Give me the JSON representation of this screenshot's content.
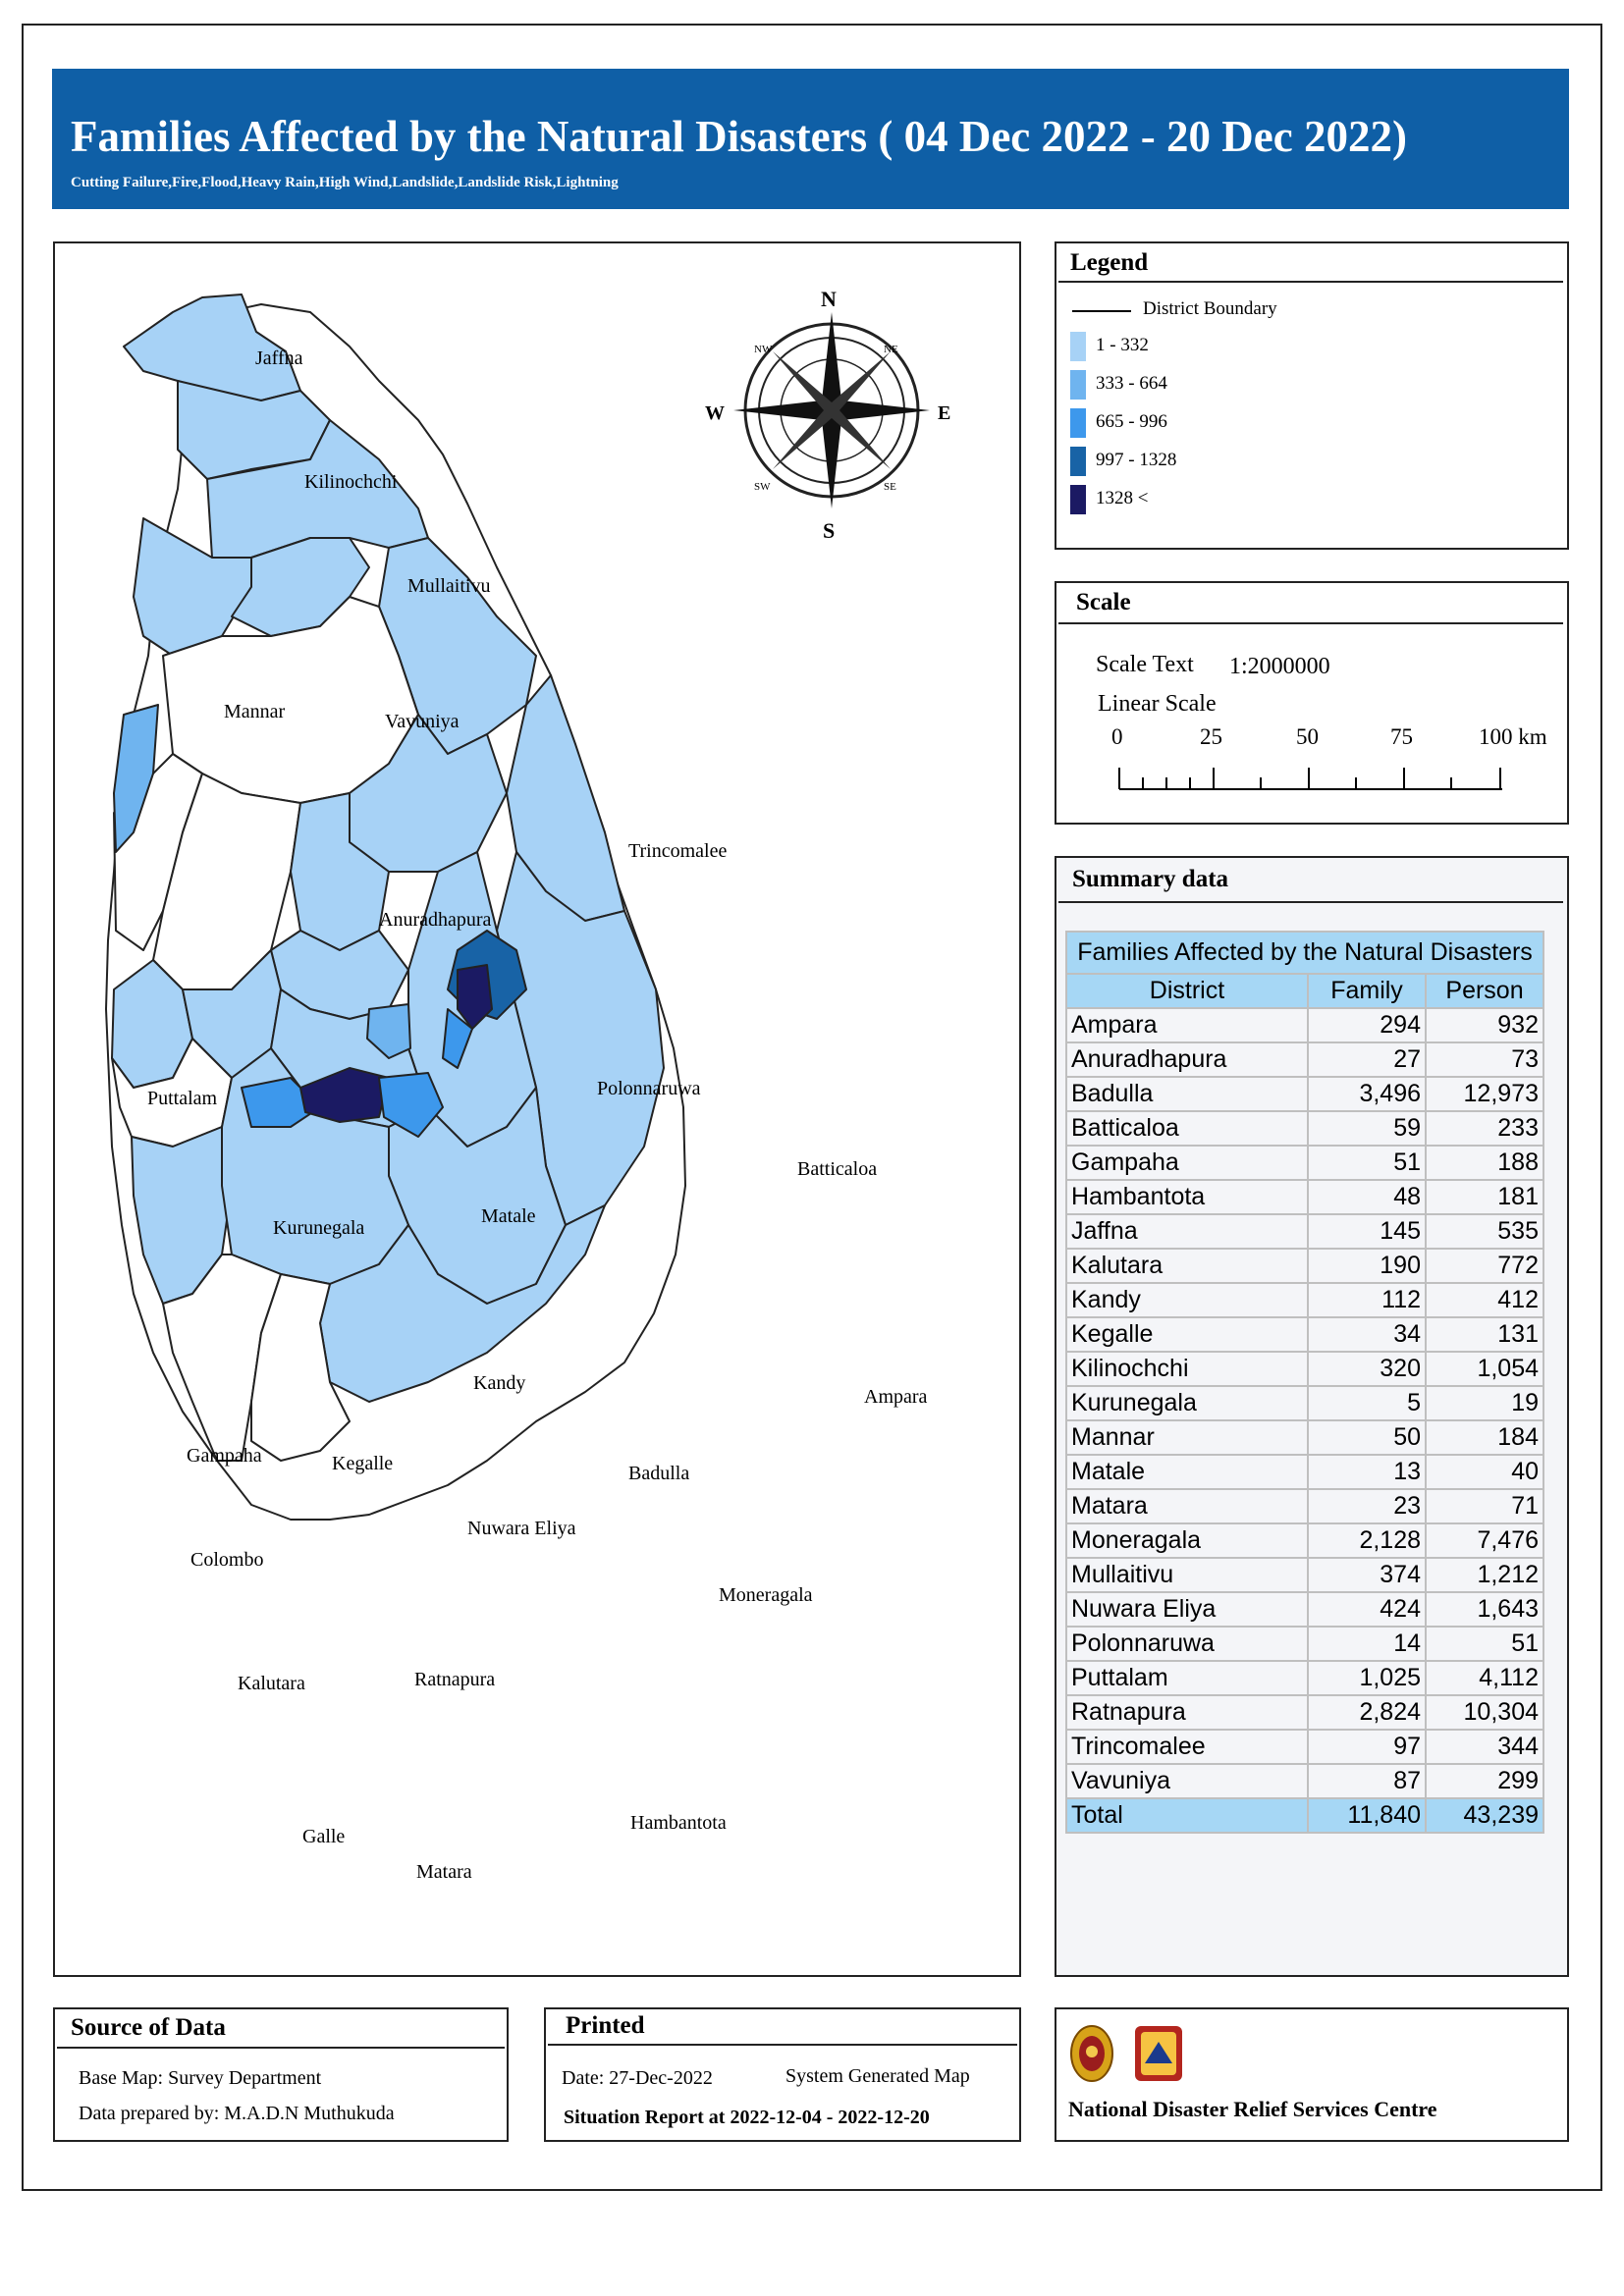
{
  "title": "Families Affected by the Natural Disasters ( 04 Dec 2022 - 20 Dec 2022)",
  "subtitle": "Cutting Failure,Fire,Flood,Heavy Rain,High Wind,Landslide,Landslide Risk,Lightning",
  "map": {
    "compass": {
      "n": "N",
      "s": "S",
      "e": "E",
      "w": "W",
      "ne": "NE",
      "nw": "NW",
      "se": "SE",
      "sw": "SW"
    },
    "district_labels": [
      "Jaffna",
      "Kilinochchi",
      "Mullaitivu",
      "Mannar",
      "Vavuniya",
      "Trincomalee",
      "Anuradhapura",
      "Puttalam",
      "Polonnaruwa",
      "Batticaloa",
      "Kurunegala",
      "Matale",
      "Kandy",
      "Ampara",
      "Gampaha",
      "Kegalle",
      "Badulla",
      "Nuwara Eliya",
      "Colombo",
      "Moneragala",
      "Kalutara",
      "Ratnapura",
      "Hambantota",
      "Galle",
      "Matara"
    ]
  },
  "legend": {
    "title": "Legend",
    "boundary_label": "District Boundary",
    "classes": [
      {
        "label": "1 - 332",
        "color": "#a7d2f6"
      },
      {
        "label": "333 - 664",
        "color": "#6fb4ef"
      },
      {
        "label": "665 - 996",
        "color": "#3d98ec"
      },
      {
        "label": "997 - 1328",
        "color": "#1863a6"
      },
      {
        "label": "1328 <",
        "color": "#1b1a63"
      }
    ]
  },
  "scale": {
    "title": "Scale",
    "text_label": "Scale Text",
    "text_value": "1:2000000",
    "linear_label": "Linear Scale",
    "ticks": [
      "0",
      "25",
      "50",
      "75",
      "100 km"
    ]
  },
  "summary": {
    "title": "Summary data",
    "caption": "Families Affected by the Natural Disasters",
    "headers": [
      "District",
      "Family",
      "Person"
    ],
    "rows": [
      [
        "Ampara",
        "294",
        "932"
      ],
      [
        "Anuradhapura",
        "27",
        "73"
      ],
      [
        "Badulla",
        "3,496",
        "12,973"
      ],
      [
        "Batticaloa",
        "59",
        "233"
      ],
      [
        "Gampaha",
        "51",
        "188"
      ],
      [
        "Hambantota",
        "48",
        "181"
      ],
      [
        "Jaffna",
        "145",
        "535"
      ],
      [
        "Kalutara",
        "190",
        "772"
      ],
      [
        "Kandy",
        "112",
        "412"
      ],
      [
        "Kegalle",
        "34",
        "131"
      ],
      [
        "Kilinochchi",
        "320",
        "1,054"
      ],
      [
        "Kurunegala",
        "5",
        "19"
      ],
      [
        "Mannar",
        "50",
        "184"
      ],
      [
        "Matale",
        "13",
        "40"
      ],
      [
        "Matara",
        "23",
        "71"
      ],
      [
        "Moneragala",
        "2,128",
        "7,476"
      ],
      [
        "Mullaitivu",
        "374",
        "1,212"
      ],
      [
        "Nuwara Eliya",
        "424",
        "1,643"
      ],
      [
        "Polonnaruwa",
        "14",
        "51"
      ],
      [
        "Puttalam",
        "1,025",
        "4,112"
      ],
      [
        "Ratnapura",
        "2,824",
        "10,304"
      ],
      [
        "Trincomalee",
        "97",
        "344"
      ],
      [
        "Vavuniya",
        "87",
        "299"
      ]
    ],
    "total": [
      "Total",
      "11,840",
      "43,239"
    ]
  },
  "source": {
    "title": "Source of Data",
    "base_map": "Base Map: Survey Department",
    "prepared_by": "Data prepared by: M.A.D.N Muthukuda"
  },
  "printed": {
    "title": "Printed",
    "date": "Date: 27-Dec-2022",
    "system": "System Generated Map",
    "situation": "Situation Report at 2022-12-04  -  2022-12-20"
  },
  "agency": {
    "name": "National Disaster Relief Services Centre"
  }
}
